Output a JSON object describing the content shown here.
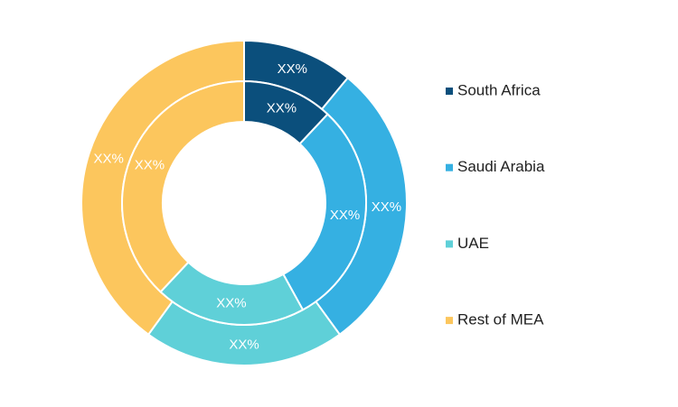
{
  "chart_data": {
    "type": "donut",
    "categories": [
      "South Africa",
      "Saudi Arabia",
      "UAE",
      "Rest of MEA"
    ],
    "colors": [
      "#0b4f7c",
      "#35b0e2",
      "#5fd0d8",
      "#fcc65d"
    ],
    "rings": [
      {
        "values": [
          11,
          29,
          20,
          40
        ],
        "value_labels": [
          "XX%",
          "XX%",
          "XX%",
          "XX%"
        ]
      },
      {
        "values": [
          12,
          30,
          20,
          38
        ],
        "value_labels": [
          "XX%",
          "XX%",
          "XX%",
          "XX%"
        ]
      }
    ],
    "legend": "right"
  }
}
